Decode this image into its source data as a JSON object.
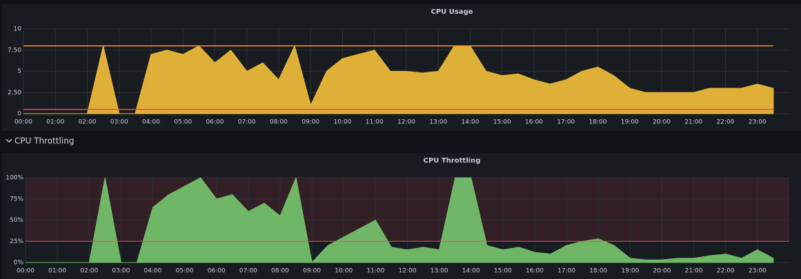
{
  "chart_data": [
    {
      "type": "area",
      "title": "CPU Usage",
      "x": [
        0,
        0.5,
        1,
        1.5,
        2,
        2.5,
        3,
        3.5,
        4,
        4.5,
        5,
        5.5,
        6,
        6.5,
        7,
        7.5,
        8,
        8.5,
        9,
        9.5,
        10,
        10.5,
        11,
        11.5,
        12,
        12.5,
        13,
        13.5,
        14,
        14.5,
        15,
        15.5,
        16,
        16.5,
        17,
        17.5,
        18,
        18.5,
        19,
        19.5,
        20,
        20.5,
        21,
        21.5,
        22,
        22.5,
        23,
        23.5
      ],
      "series": [
        {
          "color": "#eab839",
          "area": true,
          "values": [
            0,
            0,
            0,
            0,
            0,
            8,
            0,
            0,
            7,
            7.5,
            7,
            8,
            6,
            7.5,
            5,
            6,
            4,
            8,
            1,
            5,
            6.5,
            7,
            7.5,
            5,
            5,
            4.8,
            5,
            8,
            8,
            5,
            4.5,
            4.7,
            4,
            3.5,
            4,
            5,
            5.5,
            4.5,
            3,
            2.5,
            2.5,
            2.5,
            2.5,
            3,
            3,
            3,
            3.5,
            3
          ]
        },
        {
          "color": "#ff9830",
          "area": false,
          "values": [
            8,
            8,
            8,
            8,
            8,
            8,
            8,
            8,
            8,
            8,
            8,
            8,
            8,
            8,
            8,
            8,
            8,
            8,
            8,
            8,
            8,
            8,
            8,
            8,
            8,
            8,
            8,
            8,
            8,
            8,
            8,
            8,
            8,
            8,
            8,
            8,
            8,
            8,
            8,
            8,
            8,
            8,
            8,
            8,
            8,
            8,
            8,
            8
          ]
        },
        {
          "color": "#f2495c",
          "area": false,
          "values": [
            0.5,
            0.5,
            0.5,
            0.5,
            0.5,
            0.5,
            0.5,
            0.5,
            0.5,
            0.5,
            0.5,
            0.5,
            0.5,
            0.5,
            0.5,
            0.5,
            0.5,
            0.5,
            0.5,
            0.5,
            0.5,
            0.5,
            0.5,
            0.5,
            0.5,
            0.5,
            0.5,
            0.5,
            0.5,
            0.5,
            0.5,
            0.5,
            0.5,
            0.5,
            0.5,
            0.5,
            0.5,
            0.5,
            0.5,
            0.5,
            0.5,
            0.5,
            0.5,
            0.5,
            0.5,
            0.5,
            0.5,
            0.5
          ]
        }
      ],
      "xlim": [
        0,
        24
      ],
      "xticks": [
        {
          "value": 0,
          "label": "00:00"
        },
        {
          "value": 1,
          "label": "01:00"
        },
        {
          "value": 2,
          "label": "02:00"
        },
        {
          "value": 3,
          "label": "03:00"
        },
        {
          "value": 4,
          "label": "04:00"
        },
        {
          "value": 5,
          "label": "05:00"
        },
        {
          "value": 6,
          "label": "06:00"
        },
        {
          "value": 7,
          "label": "07:00"
        },
        {
          "value": 8,
          "label": "08:00"
        },
        {
          "value": 9,
          "label": "09:00"
        },
        {
          "value": 10,
          "label": "10:00"
        },
        {
          "value": 11,
          "label": "11:00"
        },
        {
          "value": 12,
          "label": "12:00"
        },
        {
          "value": 13,
          "label": "13:00"
        },
        {
          "value": 14,
          "label": "14:00"
        },
        {
          "value": 15,
          "label": "15:00"
        },
        {
          "value": 16,
          "label": "16:00"
        },
        {
          "value": 17,
          "label": "17:00"
        },
        {
          "value": 18,
          "label": "18:00"
        },
        {
          "value": 19,
          "label": "19:00"
        },
        {
          "value": 20,
          "label": "20:00"
        },
        {
          "value": 21,
          "label": "21:00"
        },
        {
          "value": 22,
          "label": "22:00"
        },
        {
          "value": 23,
          "label": "23:00"
        }
      ],
      "ylim": [
        0,
        10
      ],
      "yticks": [
        0,
        {
          "value": 2.5,
          "label": "2.50"
        },
        5,
        {
          "value": 7.5,
          "label": "7.50"
        },
        10
      ],
      "grid": true
    },
    {
      "type": "area",
      "title": "CPU Throttling",
      "x": [
        0,
        0.5,
        1,
        1.5,
        2,
        2.5,
        3,
        3.5,
        4,
        4.5,
        5,
        5.5,
        6,
        6.5,
        7,
        7.5,
        8,
        8.5,
        9,
        9.5,
        10,
        10.5,
        11,
        11.5,
        12,
        12.5,
        13,
        13.5,
        14,
        14.5,
        15,
        15.5,
        16,
        16.5,
        17,
        17.5,
        18,
        18.5,
        19,
        19.5,
        20,
        20.5,
        21,
        21.5,
        22,
        22.5,
        23,
        23.5
      ],
      "series": [
        {
          "color": "#73bf69",
          "area": true,
          "values": [
            0,
            0,
            0,
            0,
            0,
            100,
            0,
            0,
            65,
            80,
            90,
            100,
            75,
            80,
            60,
            70,
            55,
            100,
            0,
            20,
            30,
            40,
            50,
            18,
            15,
            18,
            15,
            100,
            100,
            20,
            15,
            18,
            12,
            10,
            20,
            25,
            28,
            20,
            5,
            3,
            3,
            5,
            5,
            8,
            10,
            5,
            15,
            5
          ]
        }
      ],
      "threshold": 25,
      "threshold_color": "#f2495c",
      "xlim": [
        0,
        24
      ],
      "xticks": [
        {
          "value": 0,
          "label": "00:00"
        },
        {
          "value": 1,
          "label": "01:00"
        },
        {
          "value": 2,
          "label": "02:00"
        },
        {
          "value": 3,
          "label": "03:00"
        },
        {
          "value": 4,
          "label": "04:00"
        },
        {
          "value": 5,
          "label": "05:00"
        },
        {
          "value": 6,
          "label": "06:00"
        },
        {
          "value": 7,
          "label": "07:00"
        },
        {
          "value": 8,
          "label": "08:00"
        },
        {
          "value": 9,
          "label": "09:00"
        },
        {
          "value": 10,
          "label": "10:00"
        },
        {
          "value": 11,
          "label": "11:00"
        },
        {
          "value": 12,
          "label": "12:00"
        },
        {
          "value": 13,
          "label": "13:00"
        },
        {
          "value": 14,
          "label": "14:00"
        },
        {
          "value": 15,
          "label": "15:00"
        },
        {
          "value": 16,
          "label": "16:00"
        },
        {
          "value": 17,
          "label": "17:00"
        },
        {
          "value": 18,
          "label": "18:00"
        },
        {
          "value": 19,
          "label": "19:00"
        },
        {
          "value": 20,
          "label": "20:00"
        },
        {
          "value": 21,
          "label": "21:00"
        },
        {
          "value": 22,
          "label": "22:00"
        },
        {
          "value": 23,
          "label": "23:00"
        }
      ],
      "ylim": [
        0,
        100
      ],
      "yticks": [
        {
          "value": 0,
          "label": "0%"
        },
        {
          "value": 25,
          "label": "25%"
        },
        {
          "value": 50,
          "label": "50%"
        },
        {
          "value": 75,
          "label": "75%"
        },
        {
          "value": 100,
          "label": "100%"
        }
      ],
      "grid": true
    }
  ],
  "row": {
    "title": "CPU Throttling"
  }
}
